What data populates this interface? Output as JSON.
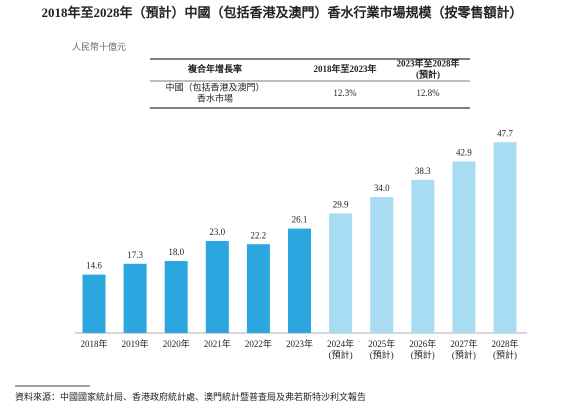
{
  "chart_data": {
    "type": "bar",
    "title": "2018年至2028年（預計）中國（包括香港及澳門）香水行業市場規模（按零售額計）",
    "unit": "人民幣十億元",
    "table": {
      "header": [
        "複合年增長率",
        "2018年至2023年",
        "2023年至2028年\n(預計)"
      ],
      "rows": [
        [
          "中國（包括香港及澳門）\n香水市場",
          "12.3%",
          "12.8%"
        ]
      ]
    },
    "categories": [
      "2018年",
      "2019年",
      "2020年",
      "2021年",
      "2022年",
      "2023年",
      "2024年\n(預計)",
      "2025年\n(預計)",
      "2026年\n(預計)",
      "2027年\n(預計)",
      "2028年\n(預計)"
    ],
    "values": [
      14.6,
      17.3,
      18.0,
      23.0,
      22.2,
      26.1,
      29.9,
      34.0,
      38.3,
      42.9,
      47.7
    ],
    "value_labels": [
      "14.6",
      "17.3",
      "18.0",
      "23.0",
      "22.2",
      "26.1",
      "29.9",
      "34.0",
      "38.3",
      "42.9",
      "47.7"
    ],
    "colors": [
      "#2ba6de",
      "#2ba6de",
      "#2ba6de",
      "#2ba6de",
      "#2ba6de",
      "#2ba6de",
      "#a8dcf3",
      "#a8dcf3",
      "#a8dcf3",
      "#a8dcf3",
      "#a8dcf3"
    ],
    "source": "資料來源：中國國家統計局、香港政府統計處、澳門統計暨普查局及弗若斯特沙利文報告"
  }
}
